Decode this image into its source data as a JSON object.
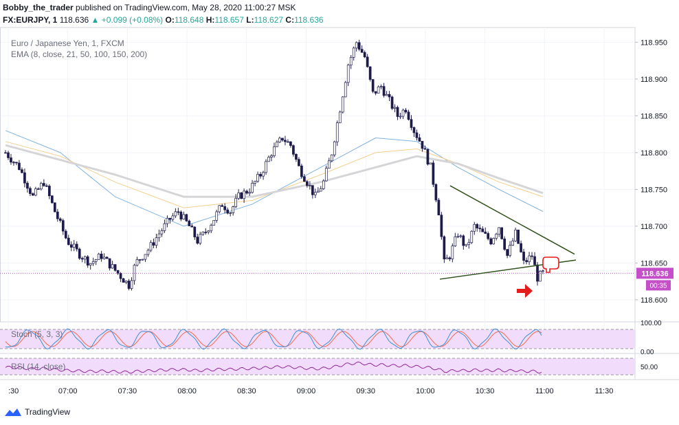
{
  "header": {
    "author": "Bobby_the_trader",
    "published_text": "published on TradingView.com, May 28, 2020 11:00:27 MSK",
    "symbol": "FX:EURJPY, 1",
    "last": "118.636",
    "change": "+0.099 (+0.08%)",
    "o_label": "O:",
    "o": "118.648",
    "h_label": "H:",
    "h": "118.657",
    "l_label": "L:",
    "l": "118.627",
    "c_label": "C:",
    "c": "118.636"
  },
  "legend": {
    "instrument": "Euro / Japanese Yen, 1, FXCM",
    "ema": "EMA (8, close, 21, 50, 100, 150, 200)"
  },
  "indicators": {
    "stoch_label": "Stoch (5, 3, 3)",
    "rsi_label": "RSI (14, close)"
  },
  "price_tag": "118.636",
  "countdown": "00:35",
  "brand": "TradingView",
  "colors": {
    "candle_up": "#ffffff",
    "candle_down": "#1e1b4b",
    "candle_border": "#1e1b4b",
    "ema_blue": "#7fb2e0",
    "ema_orange": "#f5cf8e",
    "ema_gray": "#d5d5d8",
    "trendline": "#2f4f1a",
    "price_tag": "#c44fc9",
    "marker_red": "#e51c1c",
    "stoch_k": "#3a8fd9",
    "stoch_d": "#f4694b",
    "rsi_line": "#8e2a9c",
    "band_fill": "#f1dcfb"
  },
  "chart_data": {
    "type": "candlestick",
    "title": "Euro / Japanese Yen, 1, FXCM",
    "x_ticks": [
      ":30",
      "07:00",
      "07:30",
      "08:00",
      "08:30",
      "09:00",
      "09:30",
      "10:00",
      "10:30",
      "11:00",
      "11:30"
    ],
    "y_ticks": [
      "118.950",
      "118.900",
      "118.850",
      "118.800",
      "118.750",
      "118.700",
      "118.650",
      "118.600"
    ],
    "y_range": [
      118.57,
      118.97
    ],
    "current_price": 118.636,
    "path_points": [
      [
        0,
        118.8
      ],
      [
        10,
        118.78
      ],
      [
        20,
        118.74
      ],
      [
        28,
        118.76
      ],
      [
        36,
        118.72
      ],
      [
        45,
        118.68
      ],
      [
        55,
        118.66
      ],
      [
        62,
        118.65
      ],
      [
        70,
        118.66
      ],
      [
        80,
        118.64
      ],
      [
        90,
        118.62
      ],
      [
        95,
        118.65
      ],
      [
        105,
        118.67
      ],
      [
        112,
        118.69
      ],
      [
        120,
        118.71
      ],
      [
        126,
        118.72
      ],
      [
        134,
        118.7
      ],
      [
        140,
        118.68
      ],
      [
        145,
        118.69
      ],
      [
        152,
        118.71
      ],
      [
        158,
        118.73
      ],
      [
        164,
        118.72
      ],
      [
        170,
        118.74
      ],
      [
        178,
        118.75
      ],
      [
        186,
        118.77
      ],
      [
        194,
        118.8
      ],
      [
        202,
        118.82
      ],
      [
        208,
        118.81
      ],
      [
        214,
        118.78
      ],
      [
        220,
        118.76
      ],
      [
        226,
        118.74
      ],
      [
        232,
        118.76
      ],
      [
        238,
        118.8
      ],
      [
        244,
        118.86
      ],
      [
        250,
        118.92
      ],
      [
        256,
        118.95
      ],
      [
        262,
        118.93
      ],
      [
        268,
        118.88
      ],
      [
        274,
        118.89
      ],
      [
        280,
        118.87
      ],
      [
        286,
        118.85
      ],
      [
        292,
        118.86
      ],
      [
        298,
        118.83
      ],
      [
        304,
        118.81
      ],
      [
        310,
        118.78
      ],
      [
        316,
        118.72
      ],
      [
        320,
        118.65
      ],
      [
        324,
        118.66
      ],
      [
        330,
        118.69
      ],
      [
        336,
        118.67
      ],
      [
        342,
        118.7
      ],
      [
        348,
        118.69
      ],
      [
        354,
        118.68
      ],
      [
        360,
        118.7
      ],
      [
        366,
        118.66
      ],
      [
        372,
        118.69
      ],
      [
        378,
        118.65
      ],
      [
        384,
        118.66
      ],
      [
        388,
        118.63
      ],
      [
        392,
        118.636
      ]
    ],
    "ema_series": [
      {
        "color": "blue",
        "values": [
          [
            0,
            118.83
          ],
          [
            40,
            118.8
          ],
          [
            80,
            118.74
          ],
          [
            130,
            118.7
          ],
          [
            180,
            118.73
          ],
          [
            230,
            118.78
          ],
          [
            270,
            118.82
          ],
          [
            300,
            118.815
          ],
          [
            330,
            118.78
          ],
          [
            360,
            118.75
          ],
          [
            392,
            118.72
          ]
        ]
      },
      {
        "color": "orange",
        "values": [
          [
            0,
            118.815
          ],
          [
            40,
            118.795
          ],
          [
            80,
            118.76
          ],
          [
            130,
            118.725
          ],
          [
            180,
            118.735
          ],
          [
            230,
            118.77
          ],
          [
            270,
            118.8
          ],
          [
            300,
            118.805
          ],
          [
            330,
            118.785
          ],
          [
            360,
            118.76
          ],
          [
            392,
            118.74
          ]
        ]
      },
      {
        "color": "gray",
        "values": [
          [
            0,
            118.81
          ],
          [
            40,
            118.79
          ],
          [
            80,
            118.77
          ],
          [
            130,
            118.74
          ],
          [
            180,
            118.74
          ],
          [
            230,
            118.76
          ],
          [
            270,
            118.78
          ],
          [
            300,
            118.795
          ],
          [
            330,
            118.785
          ],
          [
            360,
            118.765
          ],
          [
            392,
            118.745
          ]
        ]
      }
    ],
    "trendlines": [
      {
        "from": [
          318,
          118.755
        ],
        "to": [
          417,
          118.662
        ]
      },
      {
        "from": [
          318,
          118.628
        ],
        "to": [
          417,
          118.654
        ]
      }
    ]
  }
}
